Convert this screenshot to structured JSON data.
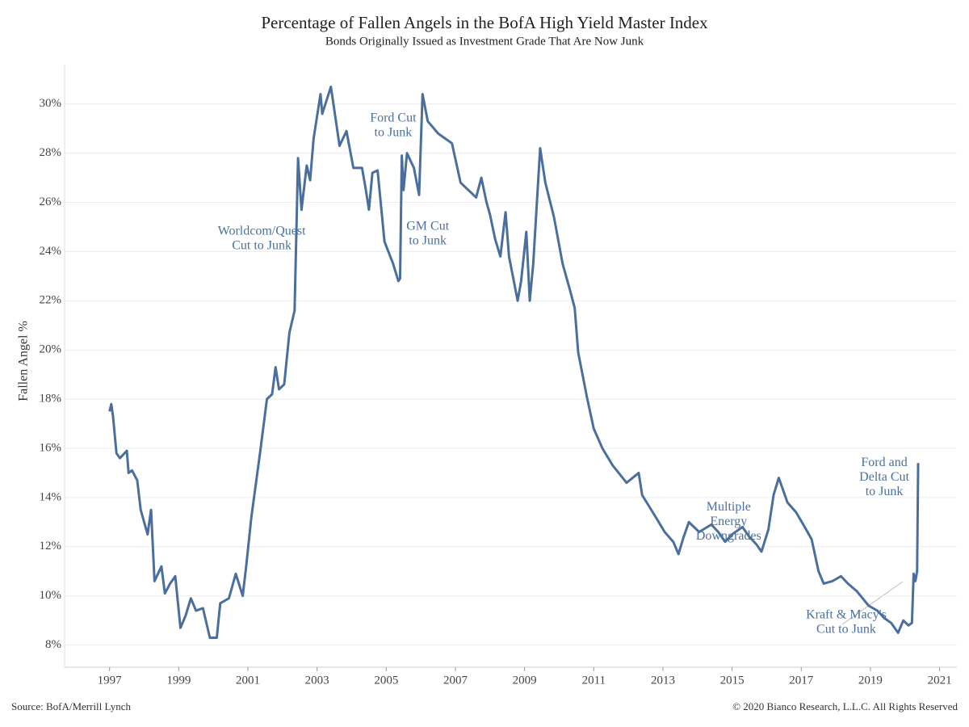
{
  "chart_data": {
    "type": "line",
    "title": "Percentage of Fallen Angels in the BofA High Yield Master Index",
    "subtitle": "Bonds Originally Issued as Investment Grade That Are Now Junk",
    "y_label": "Fallen Angel %",
    "source": "Source: BofA/Merrill Lynch",
    "copyright": "© 2020 Bianco Research, L.L.C. All Rights Reserved",
    "xlim": [
      1995.7,
      2021.5
    ],
    "xticks": [
      1997,
      1999,
      2001,
      2003,
      2005,
      2007,
      2009,
      2011,
      2013,
      2015,
      2017,
      2019,
      2021
    ],
    "ylim": [
      7.1,
      31.6
    ],
    "yticks": [
      {
        "value": 8,
        "label": "8%"
      },
      {
        "value": 10,
        "label": "10%"
      },
      {
        "value": 12,
        "label": "12%"
      },
      {
        "value": 14,
        "label": "14%"
      },
      {
        "value": 16,
        "label": "16%"
      },
      {
        "value": 18,
        "label": "18%"
      },
      {
        "value": 20,
        "label": "20%"
      },
      {
        "value": 22,
        "label": "22%"
      },
      {
        "value": 24,
        "label": "24%"
      },
      {
        "value": 26,
        "label": "26%"
      },
      {
        "value": 28,
        "label": "28%"
      },
      {
        "value": 30,
        "label": "30%"
      }
    ],
    "grid": true,
    "annotations": [
      {
        "lines": [
          "Worldcom/Quest",
          "Cut to Junk"
        ],
        "x": 2001.4,
        "y": 24.8
      },
      {
        "lines": [
          "Ford Cut",
          "to Junk"
        ],
        "x": 2005.2,
        "y": 29.4
      },
      {
        "lines": [
          "GM Cut",
          "to Junk"
        ],
        "x": 2006.2,
        "y": 25.0
      },
      {
        "lines": [
          "Multiple",
          "Energy",
          "Downgrades"
        ],
        "x": 2014.9,
        "y": 13.6
      },
      {
        "lines": [
          "Ford and",
          "Delta Cut",
          "to Junk"
        ],
        "x": 2019.4,
        "y": 15.4
      },
      {
        "lines": [
          "Kraft & Macy's",
          "Cut to Junk"
        ],
        "x": 2018.3,
        "y": 9.2
      }
    ],
    "series": [
      {
        "name": "Fallen Angel %",
        "color": "#4a6f9c",
        "x": [
          1997.0,
          1997.05,
          1997.1,
          1997.2,
          1997.3,
          1997.5,
          1997.55,
          1997.65,
          1997.8,
          1997.9,
          1998.1,
          1998.2,
          1998.3,
          1998.5,
          1998.6,
          1998.75,
          1998.9,
          1999.05,
          1999.2,
          1999.35,
          1999.5,
          1999.7,
          1999.9,
          2000.1,
          2000.2,
          2000.45,
          2000.65,
          2000.85,
          2000.95,
          2001.1,
          2001.35,
          2001.55,
          2001.7,
          2001.8,
          2001.9,
          2002.05,
          2002.2,
          2002.35,
          2002.45,
          2002.55,
          2002.7,
          2002.8,
          2002.9,
          2003.1,
          2003.15,
          2003.4,
          2003.65,
          2003.85,
          2004.05,
          2004.3,
          2004.4,
          2004.5,
          2004.6,
          2004.75,
          2004.95,
          2005.2,
          2005.35,
          2005.4,
          2005.45,
          2005.5,
          2005.6,
          2005.8,
          2005.95,
          2006.05,
          2006.2,
          2006.5,
          2006.9,
          2007.15,
          2007.6,
          2007.75,
          2007.9,
          2008.0,
          2008.15,
          2008.3,
          2008.45,
          2008.55,
          2008.8,
          2008.9,
          2009.05,
          2009.15,
          2009.25,
          2009.45,
          2009.6,
          2009.85,
          2010.1,
          2010.3,
          2010.45,
          2010.55,
          2010.8,
          2011.0,
          2011.25,
          2011.55,
          2011.95,
          2012.3,
          2012.4,
          2012.75,
          2013.05,
          2013.3,
          2013.45,
          2013.6,
          2013.75,
          2014.05,
          2014.4,
          2014.6,
          2014.8,
          2015.0,
          2015.3,
          2015.5,
          2015.7,
          2015.85,
          2016.05,
          2016.2,
          2016.35,
          2016.6,
          2016.85,
          2017.1,
          2017.3,
          2017.5,
          2017.65,
          2017.9,
          2018.15,
          2018.35,
          2018.6,
          2018.95,
          2019.2,
          2019.4,
          2019.6,
          2019.8,
          2019.95,
          2020.1,
          2020.2,
          2020.25,
          2020.3,
          2020.35,
          2020.38
        ],
        "values": [
          17.5,
          17.8,
          17.3,
          15.8,
          15.6,
          15.9,
          15.0,
          15.1,
          14.7,
          13.5,
          12.5,
          13.5,
          10.6,
          11.2,
          10.1,
          10.5,
          10.8,
          8.7,
          9.2,
          9.9,
          9.4,
          9.5,
          8.3,
          8.3,
          9.7,
          9.9,
          10.9,
          10.0,
          11.2,
          13.2,
          15.8,
          18.0,
          18.2,
          19.3,
          18.4,
          18.6,
          20.7,
          21.6,
          27.8,
          25.7,
          27.5,
          26.9,
          28.6,
          30.4,
          29.6,
          30.7,
          28.3,
          28.9,
          27.4,
          27.4,
          26.6,
          25.7,
          27.2,
          27.3,
          24.4,
          23.5,
          22.8,
          22.9,
          27.9,
          26.5,
          28.0,
          27.4,
          26.3,
          30.4,
          29.3,
          28.8,
          28.4,
          26.8,
          26.2,
          27.0,
          26.0,
          25.5,
          24.5,
          23.8,
          25.6,
          23.8,
          22.0,
          22.8,
          24.8,
          22.0,
          23.5,
          28.2,
          26.8,
          25.4,
          23.5,
          22.5,
          21.7,
          19.9,
          18.1,
          16.8,
          16.0,
          15.3,
          14.6,
          15.0,
          14.1,
          13.3,
          12.6,
          12.2,
          11.7,
          12.4,
          13.0,
          12.6,
          12.9,
          12.6,
          12.2,
          12.5,
          12.8,
          12.4,
          12.1,
          11.8,
          12.7,
          14.1,
          14.8,
          13.8,
          13.4,
          12.8,
          12.3,
          11.0,
          10.5,
          10.6,
          10.8,
          10.5,
          10.2,
          9.6,
          9.4,
          9.1,
          8.9,
          8.5,
          9.0,
          8.8,
          8.9,
          10.9,
          10.6,
          11.0,
          15.4
        ]
      }
    ]
  }
}
